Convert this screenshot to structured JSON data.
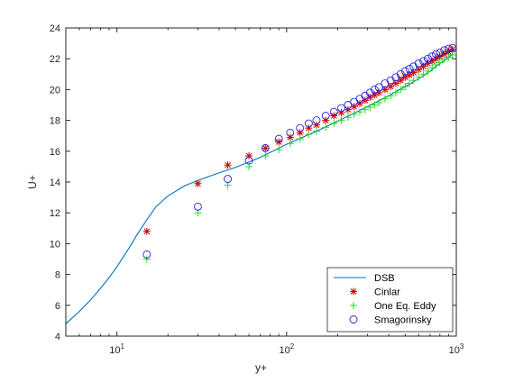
{
  "chart_data": {
    "type": "line",
    "xlabel": "y+",
    "ylabel": "U+",
    "xscale": "log",
    "xlim": [
      5,
      1000
    ],
    "ylim": [
      4,
      24
    ],
    "x_ticks": [
      {
        "value": 10,
        "base": "10",
        "exp": "1"
      },
      {
        "value": 100,
        "base": "10",
        "exp": "2"
      },
      {
        "value": 1000,
        "base": "10",
        "exp": "3"
      }
    ],
    "y_ticks": [
      4,
      6,
      8,
      10,
      12,
      14,
      16,
      18,
      20,
      22,
      24
    ],
    "grid": false,
    "legend_position": "bottom-right",
    "series": [
      {
        "name": "DSB",
        "style": "line",
        "color": "#0072bd",
        "points": [
          [
            5,
            4.8
          ],
          [
            6,
            5.6
          ],
          [
            7,
            6.35
          ],
          [
            8,
            7.1
          ],
          [
            9,
            7.8
          ],
          [
            10,
            8.5
          ],
          [
            11,
            9.2
          ],
          [
            12,
            9.85
          ],
          [
            13,
            10.5
          ],
          [
            14,
            11.05
          ],
          [
            15,
            11.55
          ],
          [
            17,
            12.4
          ],
          [
            20,
            13.1
          ],
          [
            25,
            13.75
          ],
          [
            30,
            14.1
          ],
          [
            40,
            14.6
          ],
          [
            50,
            14.95
          ],
          [
            70,
            15.6
          ],
          [
            100,
            16.45
          ],
          [
            150,
            17.3
          ],
          [
            200,
            17.95
          ],
          [
            300,
            18.9
          ],
          [
            400,
            19.6
          ],
          [
            500,
            20.2
          ],
          [
            600,
            20.7
          ],
          [
            700,
            21.2
          ],
          [
            800,
            21.7
          ],
          [
            900,
            22.1
          ],
          [
            950,
            22.3
          ]
        ]
      },
      {
        "name": "Cinlar",
        "style": "asterisk",
        "color": "#cc0000",
        "points": [
          [
            15,
            10.8
          ],
          [
            30,
            13.9
          ],
          [
            45,
            15.1
          ],
          [
            60,
            15.7
          ],
          [
            75,
            16.2
          ],
          [
            90,
            16.6
          ],
          [
            105,
            16.9
          ],
          [
            120,
            17.2
          ],
          [
            135,
            17.5
          ],
          [
            150,
            17.7
          ],
          [
            170,
            18.0
          ],
          [
            190,
            18.3
          ],
          [
            210,
            18.5
          ],
          [
            230,
            18.7
          ],
          [
            250,
            18.9
          ],
          [
            270,
            19.1
          ],
          [
            290,
            19.3
          ],
          [
            310,
            19.5
          ],
          [
            330,
            19.65
          ],
          [
            350,
            19.8
          ],
          [
            380,
            20.0
          ],
          [
            410,
            20.2
          ],
          [
            440,
            20.4
          ],
          [
            470,
            20.6
          ],
          [
            500,
            20.8
          ],
          [
            530,
            20.95
          ],
          [
            560,
            21.1
          ],
          [
            600,
            21.3
          ],
          [
            640,
            21.5
          ],
          [
            680,
            21.7
          ],
          [
            720,
            21.85
          ],
          [
            760,
            22.0
          ],
          [
            800,
            22.15
          ],
          [
            850,
            22.3
          ],
          [
            900,
            22.45
          ],
          [
            950,
            22.6
          ]
        ]
      },
      {
        "name": "One Eq. Eddy",
        "style": "plus",
        "color": "#22dd22",
        "points": [
          [
            15,
            9.0
          ],
          [
            30,
            12.0
          ],
          [
            45,
            13.8
          ],
          [
            60,
            15.0
          ],
          [
            75,
            15.7
          ],
          [
            90,
            16.1
          ],
          [
            105,
            16.5
          ],
          [
            120,
            16.8
          ],
          [
            135,
            17.1
          ],
          [
            150,
            17.3
          ],
          [
            170,
            17.55
          ],
          [
            190,
            17.8
          ],
          [
            210,
            18.0
          ],
          [
            230,
            18.2
          ],
          [
            250,
            18.4
          ],
          [
            270,
            18.55
          ],
          [
            290,
            18.7
          ],
          [
            310,
            18.85
          ],
          [
            330,
            19.0
          ],
          [
            350,
            19.15
          ],
          [
            380,
            19.4
          ],
          [
            410,
            19.6
          ],
          [
            440,
            19.8
          ],
          [
            470,
            20.0
          ],
          [
            500,
            20.2
          ],
          [
            530,
            20.4
          ],
          [
            560,
            20.6
          ],
          [
            600,
            20.8
          ],
          [
            640,
            21.0
          ],
          [
            680,
            21.2
          ],
          [
            720,
            21.4
          ],
          [
            760,
            21.6
          ],
          [
            800,
            21.75
          ],
          [
            850,
            21.95
          ],
          [
            900,
            22.1
          ],
          [
            950,
            22.25
          ]
        ]
      },
      {
        "name": "Smagorinsky",
        "style": "circle",
        "color": "#2222dd",
        "points": [
          [
            15,
            9.3
          ],
          [
            30,
            12.4
          ],
          [
            45,
            14.2
          ],
          [
            60,
            15.4
          ],
          [
            75,
            16.2
          ],
          [
            90,
            16.8
          ],
          [
            105,
            17.2
          ],
          [
            120,
            17.5
          ],
          [
            135,
            17.8
          ],
          [
            150,
            18.0
          ],
          [
            170,
            18.3
          ],
          [
            190,
            18.55
          ],
          [
            210,
            18.8
          ],
          [
            230,
            19.0
          ],
          [
            250,
            19.2
          ],
          [
            270,
            19.4
          ],
          [
            290,
            19.6
          ],
          [
            310,
            19.8
          ],
          [
            330,
            20.0
          ],
          [
            350,
            20.15
          ],
          [
            380,
            20.4
          ],
          [
            410,
            20.6
          ],
          [
            440,
            20.8
          ],
          [
            470,
            21.0
          ],
          [
            500,
            21.2
          ],
          [
            530,
            21.35
          ],
          [
            560,
            21.5
          ],
          [
            600,
            21.7
          ],
          [
            640,
            21.85
          ],
          [
            680,
            22.0
          ],
          [
            720,
            22.15
          ],
          [
            760,
            22.3
          ],
          [
            800,
            22.4
          ],
          [
            850,
            22.55
          ],
          [
            900,
            22.65
          ],
          [
            950,
            22.7
          ]
        ]
      }
    ]
  }
}
